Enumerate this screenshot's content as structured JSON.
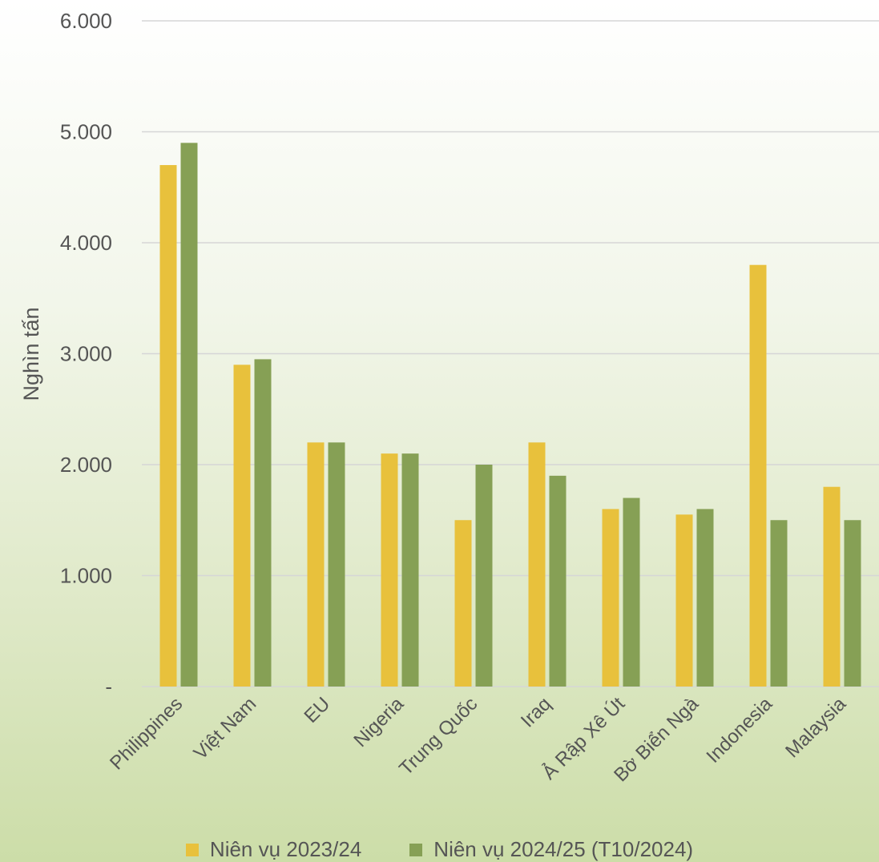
{
  "chart_data": {
    "type": "bar",
    "ylabel": "Nghìn tấn",
    "ylim": [
      0,
      6000
    ],
    "yticks": [
      {
        "value": 0,
        "label": "-"
      },
      {
        "value": 1000,
        "label": "1.000"
      },
      {
        "value": 2000,
        "label": "2.000"
      },
      {
        "value": 3000,
        "label": "3.000"
      },
      {
        "value": 4000,
        "label": "4.000"
      },
      {
        "value": 5000,
        "label": "5.000"
      },
      {
        "value": 6000,
        "label": "6.000"
      }
    ],
    "grid": true,
    "legend_position": "bottom",
    "categories": [
      "Philippines",
      "Việt Nam",
      "EU",
      "Nigeria",
      "Trung Quốc",
      "Iraq",
      "Ả Rập Xê Út",
      "Bờ Biển Ngà",
      "Indonesia",
      "Malaysia"
    ],
    "series": [
      {
        "name": "Niên vụ 2023/24",
        "color": "#e8c13c",
        "values": [
          4700,
          2900,
          2200,
          2100,
          1500,
          2200,
          1600,
          1550,
          3800,
          1800
        ]
      },
      {
        "name": "Niên vụ 2024/25 (T10/2024)",
        "color": "#86a055",
        "values": [
          4900,
          2950,
          2200,
          2100,
          2000,
          1900,
          1700,
          1600,
          1500,
          1500
        ]
      }
    ]
  }
}
